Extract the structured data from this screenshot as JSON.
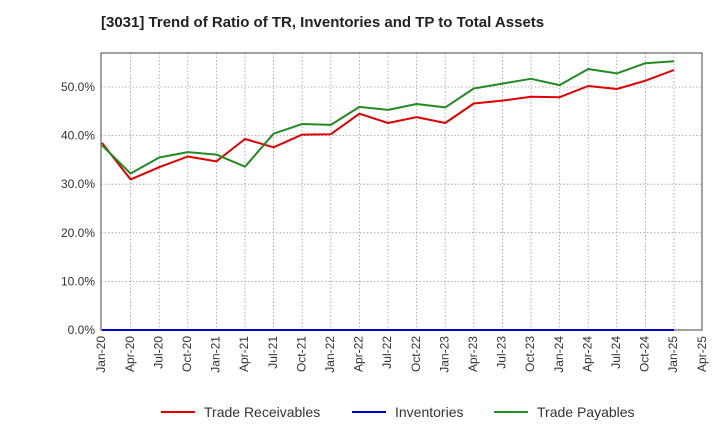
{
  "title": "[3031]  Trend of Ratio of TR, Inventories and TP to Total Assets",
  "chart_data": {
    "type": "line",
    "x": [
      "Jan-20",
      "Apr-20",
      "Jul-20",
      "Oct-20",
      "Jan-21",
      "Apr-21",
      "Jul-21",
      "Oct-21",
      "Jan-22",
      "Apr-22",
      "Jul-22",
      "Oct-22",
      "Jan-23",
      "Apr-23",
      "Jul-23",
      "Oct-23",
      "Jan-24",
      "Apr-24",
      "Jul-24",
      "Oct-24",
      "Jan-25"
    ],
    "tick_labels": [
      "Jan-20",
      "Apr-20",
      "Jul-20",
      "Oct-20",
      "Jan-21",
      "Apr-21",
      "Jul-21",
      "Oct-21",
      "Jan-22",
      "Apr-22",
      "Jul-22",
      "Oct-22",
      "Jan-23",
      "Apr-23",
      "Jul-23",
      "Oct-23",
      "Jan-24",
      "Apr-24",
      "Jul-24",
      "Oct-24",
      "Jan-25",
      "Apr-25"
    ],
    "y_ticks": [
      "0.0%",
      "10.0%",
      "20.0%",
      "30.0%",
      "40.0%",
      "50.0%"
    ],
    "ylim": [
      0,
      57
    ],
    "grid": true,
    "legend_position": "bottom",
    "series": [
      {
        "name": "Trade Receivables",
        "color": "#e00000",
        "values": [
          38.5,
          31.0,
          33.5,
          35.7,
          34.7,
          39.3,
          37.6,
          40.2,
          40.3,
          44.5,
          42.6,
          43.8,
          42.6,
          46.6,
          47.2,
          48.0,
          47.9,
          50.2,
          49.6,
          51.3,
          53.5
        ]
      },
      {
        "name": "Inventories",
        "color": "#0000cc",
        "values": [
          0,
          0,
          0,
          0,
          0,
          0,
          0,
          0,
          0,
          0,
          0,
          0,
          0,
          0,
          0,
          0,
          0,
          0,
          0,
          0,
          0
        ]
      },
      {
        "name": "Trade Payables",
        "color": "#228b22",
        "values": [
          38.0,
          32.2,
          35.5,
          36.6,
          36.1,
          33.6,
          40.4,
          42.4,
          42.2,
          45.9,
          45.3,
          46.5,
          45.8,
          49.7,
          50.7,
          51.7,
          50.4,
          53.7,
          52.8,
          54.9,
          55.3
        ]
      }
    ]
  }
}
